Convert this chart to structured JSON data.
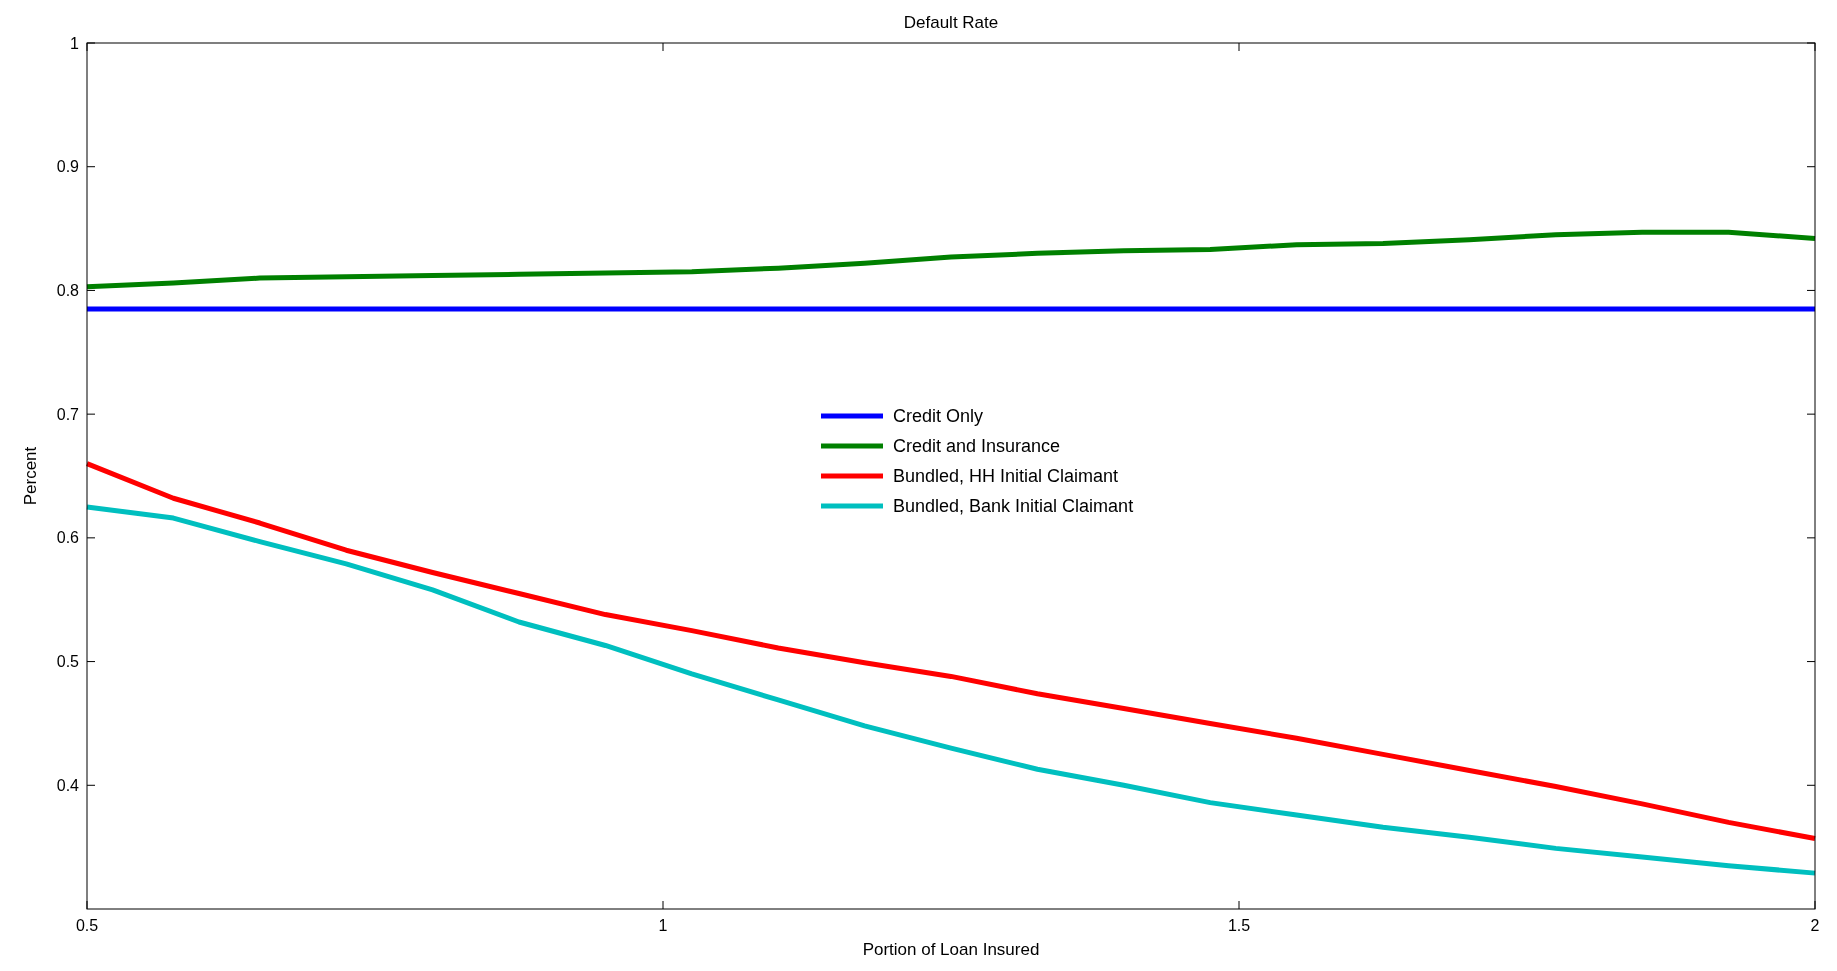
{
  "chart_data": {
    "type": "line",
    "title": "Default Rate",
    "xlabel": "Portion of Loan Insured",
    "ylabel": "Percent",
    "x": [
      0.5,
      0.575,
      0.65,
      0.725,
      0.8,
      0.875,
      0.95,
      1.025,
      1.1,
      1.175,
      1.25,
      1.325,
      1.4,
      1.475,
      1.55,
      1.625,
      1.7,
      1.775,
      1.85,
      1.925,
      2
    ],
    "series": [
      {
        "name": "Credit Only",
        "color": "#0000ff",
        "values": [
          0.785,
          0.785,
          0.785,
          0.785,
          0.785,
          0.785,
          0.785,
          0.785,
          0.785,
          0.785,
          0.785,
          0.785,
          0.785,
          0.785,
          0.785,
          0.785,
          0.785,
          0.785,
          0.785,
          0.785,
          0.785
        ]
      },
      {
        "name": "Credit and Insurance",
        "color": "#008000",
        "values": [
          0.803,
          0.806,
          0.81,
          0.811,
          0.812,
          0.813,
          0.814,
          0.815,
          0.818,
          0.822,
          0.827,
          0.83,
          0.832,
          0.833,
          0.837,
          0.838,
          0.841,
          0.845,
          0.847,
          0.847,
          0.842
        ]
      },
      {
        "name": "Bundled, HH Initial Claimant",
        "color": "#ff0000",
        "values": [
          0.66,
          0.632,
          0.612,
          0.59,
          0.572,
          0.555,
          0.538,
          0.525,
          0.511,
          0.499,
          0.488,
          0.474,
          0.462,
          0.45,
          0.438,
          0.425,
          0.412,
          0.399,
          0.385,
          0.37,
          0.357
        ]
      },
      {
        "name": "Bundled, Bank Initial Claimant",
        "color": "#00bfbf",
        "values": [
          0.625,
          0.616,
          0.597,
          0.579,
          0.558,
          0.532,
          0.513,
          0.49,
          0.469,
          0.448,
          0.43,
          0.413,
          0.4,
          0.386,
          0.376,
          0.366,
          0.358,
          0.349,
          0.342,
          0.335,
          0.329
        ]
      }
    ],
    "xlim": [
      0.5,
      2
    ],
    "xticks": [
      0.5,
      1,
      1.5,
      2
    ],
    "ylim": [
      0.3,
      1
    ],
    "yticks": [
      0.4,
      0.5,
      0.6,
      0.7,
      0.8,
      0.9,
      1
    ],
    "grid": false,
    "legend": "center",
    "marker": "none",
    "line_style": "solid"
  }
}
